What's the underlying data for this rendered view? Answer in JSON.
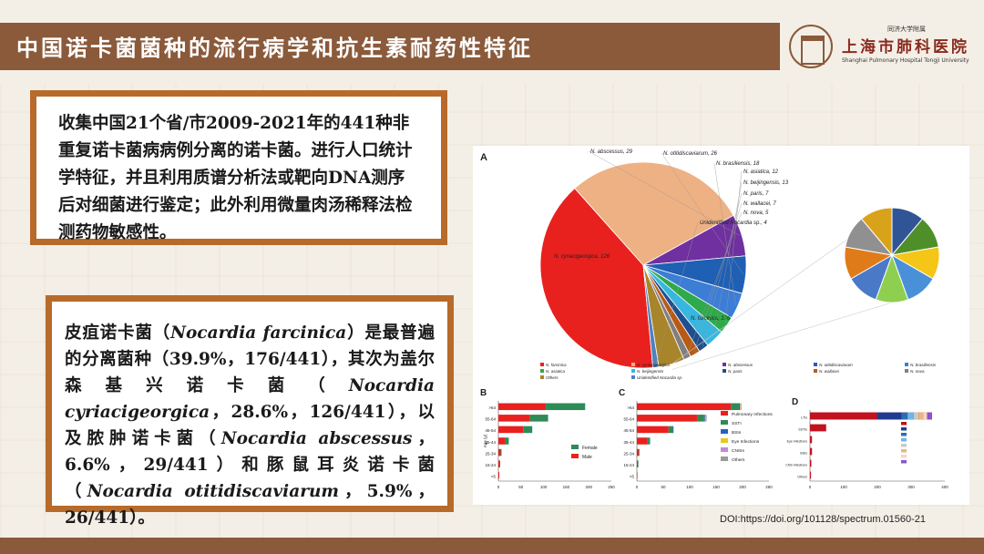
{
  "slide": {
    "title": "中国诺卡菌菌种的流行病学和抗生素耐药性特征",
    "logo": {
      "small_text": "同济大学附属",
      "name": "上海市肺科医院",
      "english": "Shanghai Pulmonary Hospital Tongji University"
    },
    "box1_text": "收集中国21个省/市2009-2021年的441种非重复诺卡菌病病例分离的诺卡菌。进行人口统计学特征，并且利用质谱分析法或靶向DNA测序后对细菌进行鉴定；此外利用微量肉汤稀释法检测药物敏感性。",
    "box2": {
      "t1": "皮疽诺卡菌（",
      "sp1": "Nocardia farcinica",
      "t2": "）是最普遍的分离菌种（39.9%，176/441），其次为盖尔森基兴诺卡菌（",
      "sp2": "Nocardia cyriacigeorgica",
      "t3": "，28.6%，126/441），以及脓肿诺卡菌（",
      "sp3": "Nocardia abscessus",
      "t4": "，6.6%，29/441）和豚鼠耳炎诺卡菌（",
      "sp4": "Nocardia otitidiscaviarum",
      "t5": "，5.9%，26/441）。"
    },
    "doi": "DOI:https://doi.org/101128/spectrum.01560-21"
  },
  "colors": {
    "title_bar": "#8a5a3b",
    "box_border": "#b86a2b",
    "female": "#2e8b57",
    "male": "#e8211f"
  },
  "chart_data": [
    {
      "type": "pie",
      "panel": "A",
      "slices": [
        {
          "name": "N. farcinica",
          "value": 176,
          "label": "N. farcinica, 176",
          "color": "#e8211f"
        },
        {
          "name": "N. cyriacigeorgica",
          "value": 126,
          "label": "N. cyriacigeorgica, 126",
          "color": "#eeb184"
        },
        {
          "name": "N. abscessus",
          "value": 29,
          "label": "N. abscessus, 29",
          "color": "#7030a0"
        },
        {
          "name": "N. otitidiscaviarum",
          "value": 26,
          "label": "N. otitidiscaviarum, 26",
          "color": "#1f5fb4"
        },
        {
          "name": "N. brasiliensis",
          "value": 18,
          "label": "N. brasiliensis, 18",
          "color": "#3c7dd6"
        },
        {
          "name": "N. asiatica",
          "value": 12,
          "label": "N. asiatica, 12",
          "color": "#2eaa4a"
        },
        {
          "name": "N. beijingensis",
          "value": 13,
          "label": "N. beijingensis, 13",
          "color": "#37b7e0"
        },
        {
          "name": "N. paris",
          "value": 7,
          "label": "N. paris, 7",
          "color": "#1f4f8f"
        },
        {
          "name": "N. wallacei",
          "value": 7,
          "label": "N. wallacei, 7",
          "color": "#b85a16"
        },
        {
          "name": "N. nova",
          "value": 5,
          "label": "N. nova, 5",
          "color": "#7f7f7f"
        },
        {
          "name": "Others",
          "value": 18,
          "label": "",
          "color": "#a8842a"
        },
        {
          "name": "Unidentified Nocardia sp.",
          "value": 4,
          "label": "Unidentified  Nocardia sp., 4",
          "color": "#4f81bd"
        }
      ]
    },
    {
      "type": "pie",
      "panel": "A-detail",
      "slices": [
        {
          "value": 1,
          "color": "#2f5597"
        },
        {
          "value": 1,
          "color": "#4e8f2a"
        },
        {
          "value": 1,
          "color": "#f5c518"
        },
        {
          "value": 1,
          "color": "#4a90d9"
        },
        {
          "value": 1,
          "color": "#8fcf4f"
        },
        {
          "value": 1,
          "color": "#4a79c7"
        },
        {
          "value": 1,
          "color": "#e07b1a"
        },
        {
          "value": 1,
          "color": "#909090"
        },
        {
          "value": 1,
          "color": "#d9a21b"
        }
      ]
    },
    {
      "type": "bar",
      "panel": "B",
      "categories": [
        "<5",
        "15-24",
        "25-34",
        "35-44",
        "45-54",
        "55-64",
        ">64"
      ],
      "series": [
        {
          "name": "Male",
          "values": [
            2,
            3,
            5,
            15,
            55,
            70,
            105
          ]
        },
        {
          "name": "Female",
          "values": [
            0,
            1,
            2,
            8,
            20,
            40,
            87
          ]
        }
      ],
      "xticks": [
        "0",
        "50",
        "100",
        "150",
        "200",
        "250"
      ],
      "xlim": [
        0,
        250
      ],
      "ylabel": "Age (y)",
      "stacked": true,
      "legend": [
        "Female",
        "Male"
      ]
    },
    {
      "type": "bar",
      "panel": "C",
      "categories": [
        "<5",
        "15-24",
        "25-34",
        "35-44",
        "45-54",
        "55-64",
        ">64"
      ],
      "series": [
        {
          "name": "Pulmonary Infections",
          "values": [
            1,
            2,
            4,
            20,
            60,
            115,
            178
          ]
        },
        {
          "name": "SSTI",
          "values": [
            0,
            1,
            1,
            4,
            8,
            12,
            15
          ]
        },
        {
          "name": "BSIs",
          "values": [
            0,
            0,
            0,
            1,
            1,
            2,
            2
          ]
        },
        {
          "name": "Eye Infections",
          "values": [
            0,
            0,
            0,
            0,
            1,
            1,
            1
          ]
        },
        {
          "name": "CNSIs",
          "values": [
            0,
            0,
            0,
            0,
            0,
            1,
            1
          ]
        },
        {
          "name": "Others",
          "values": [
            0,
            0,
            0,
            0,
            0,
            1,
            1
          ]
        }
      ],
      "xticks": [
        "0",
        "50",
        "100",
        "150",
        "200",
        "250"
      ],
      "xlim": [
        0,
        250
      ],
      "stacked": true,
      "legend": [
        "Pulmonary Infections",
        "SSTI",
        "BSIs",
        "Eye Infections",
        "CNSIs",
        "Others"
      ]
    },
    {
      "type": "bar",
      "panel": "D",
      "categories": [
        "LTIs",
        "SSTIs",
        "Eye infections",
        "BSIs",
        "CNS infections",
        "Others"
      ],
      "values": [
        362,
        48,
        6,
        6,
        4,
        3
      ],
      "xticks": [
        "0",
        "100",
        "200",
        "300",
        "400"
      ],
      "xlim": [
        0,
        400
      ],
      "stacked": true
    }
  ]
}
